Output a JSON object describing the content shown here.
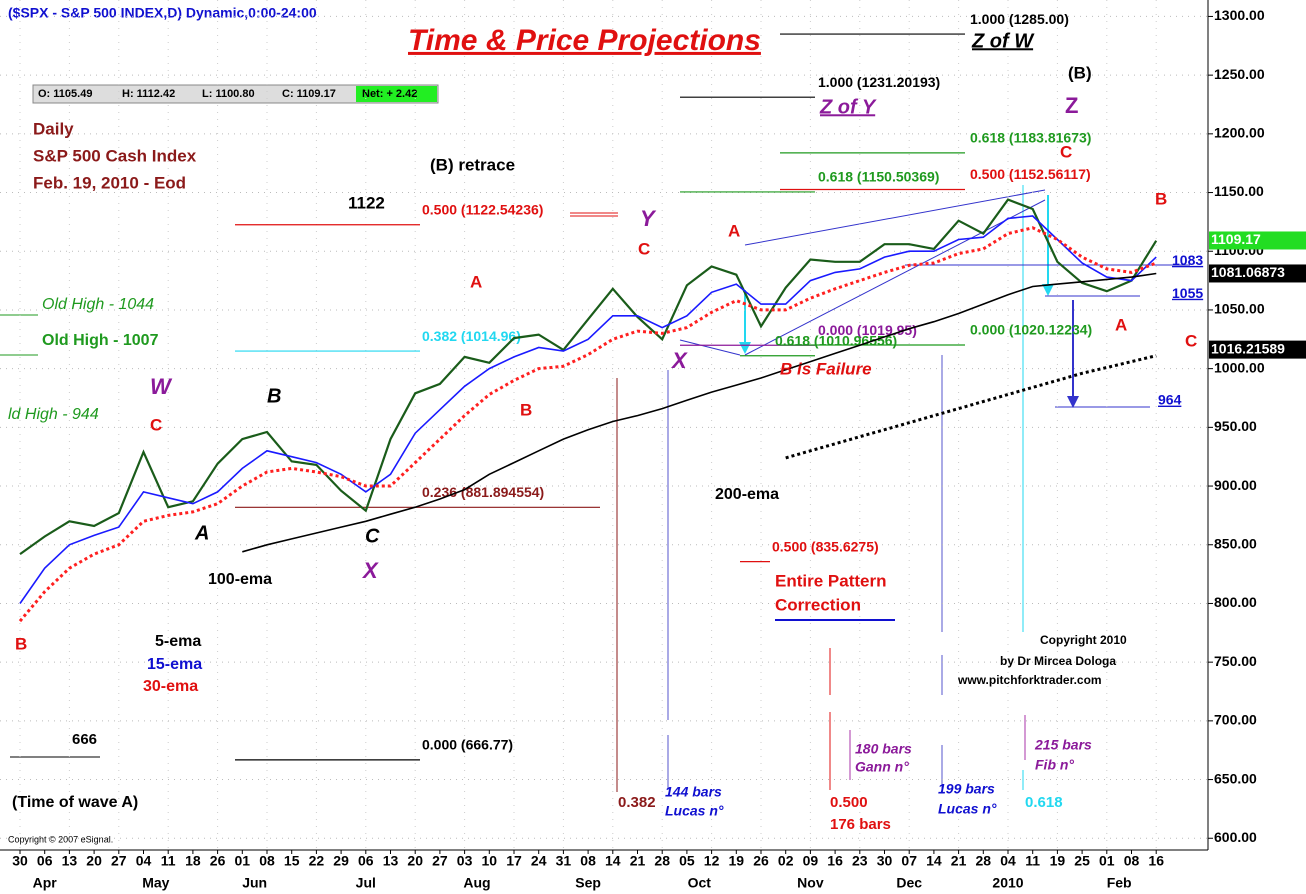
{
  "chart_data": {
    "type": "line",
    "header": "($SPX - S&P 500 INDEX,D) Dynamic,0:00-24:00",
    "ohlc": [
      "O: 1105.49",
      "H: 1112.42",
      "L: 1100.80",
      "C: 1109.17",
      "Net: + 2.42"
    ],
    "categories": [
      "30",
      "06",
      "13",
      "20",
      "27",
      "04",
      "11",
      "18",
      "26",
      "01",
      "08",
      "15",
      "22",
      "29",
      "06",
      "13",
      "20",
      "27",
      "03",
      "10",
      "17",
      "24",
      "31",
      "08",
      "14",
      "21",
      "28",
      "05",
      "12",
      "19",
      "26",
      "02",
      "09",
      "16",
      "23",
      "30",
      "07",
      "14",
      "21",
      "28",
      "04",
      "11",
      "19",
      "25",
      "01",
      "08",
      "16"
    ],
    "months": [
      "Apr",
      "May",
      "Jun",
      "Jul",
      "Aug",
      "Sep",
      "Oct",
      "Nov",
      "Dec",
      "2010",
      "Feb"
    ],
    "ylim": [
      590,
      1314
    ],
    "yticks": [
      {
        "value": 600,
        "label": "600.00"
      },
      {
        "value": 650,
        "label": "650.00"
      },
      {
        "value": 700,
        "label": "700.00"
      },
      {
        "value": 750,
        "label": "750.00"
      },
      {
        "value": 800,
        "label": "800.00"
      },
      {
        "value": 850,
        "label": "850.00"
      },
      {
        "value": 900,
        "label": "900.00"
      },
      {
        "value": 950,
        "label": "950.00"
      },
      {
        "value": 1000,
        "label": "1000.00"
      },
      {
        "value": 1050,
        "label": "1050.00"
      },
      {
        "value": 1100,
        "label": "1100.00"
      },
      {
        "value": 1150,
        "label": "1150.00"
      },
      {
        "value": 1200,
        "label": "1200.00"
      },
      {
        "value": 1250,
        "label": "1250.00"
      },
      {
        "value": 1300,
        "label": "1300.00"
      }
    ],
    "grid": true,
    "series": [
      {
        "name": "price",
        "color": "#1a5c1a",
        "dash": "",
        "values": [
          842,
          857,
          870,
          866,
          877,
          929,
          882,
          887,
          919,
          940,
          946,
          921,
          918,
          896,
          879,
          940,
          979,
          987,
          1010,
          1005,
          1026,
          1029,
          1016,
          1042,
          1068,
          1044,
          1025,
          1071,
          1087,
          1080,
          1036,
          1069,
          1093,
          1091,
          1091,
          1106,
          1106,
          1102,
          1126,
          1115,
          1144,
          1136,
          1091,
          1073,
          1066,
          1075,
          1109
        ]
      },
      {
        "name": "15-ema",
        "color": "#1a1aff",
        "dash": "",
        "values": [
          800,
          830,
          850,
          858,
          865,
          895,
          890,
          885,
          895,
          915,
          930,
          925,
          920,
          910,
          895,
          910,
          945,
          965,
          985,
          1000,
          1010,
          1018,
          1015,
          1025,
          1045,
          1045,
          1035,
          1045,
          1065,
          1072,
          1055,
          1055,
          1075,
          1082,
          1085,
          1095,
          1100,
          1100,
          1110,
          1112,
          1128,
          1130,
          1110,
          1090,
          1078,
          1075,
          1095
        ]
      },
      {
        "name": "30-ema",
        "color": "#ff2020",
        "dash": "3 3",
        "values": [
          785,
          810,
          830,
          842,
          850,
          870,
          875,
          878,
          885,
          900,
          912,
          915,
          912,
          908,
          900,
          900,
          920,
          940,
          960,
          978,
          990,
          1000,
          1002,
          1012,
          1025,
          1032,
          1030,
          1035,
          1048,
          1058,
          1050,
          1050,
          1060,
          1068,
          1075,
          1082,
          1088,
          1090,
          1098,
          1102,
          1115,
          1120,
          1110,
          1095,
          1085,
          1082,
          1090
        ]
      },
      {
        "name": "100-ema",
        "color": "#000000",
        "dash": "",
        "values": [
          null,
          null,
          null,
          null,
          null,
          null,
          null,
          null,
          null,
          844,
          850,
          855,
          860,
          865,
          870,
          876,
          882,
          889,
          897,
          910,
          920,
          930,
          940,
          948,
          955,
          960,
          966,
          973,
          980,
          986,
          992,
          999,
          1006,
          1013,
          1020,
          1027,
          1034,
          1040,
          1047,
          1055,
          1063,
          1070,
          1072,
          1074,
          1076,
          1078,
          1081
        ]
      },
      {
        "name": "200-ema",
        "color": "#000000",
        "dash": "3 3",
        "values": [
          null,
          null,
          null,
          null,
          null,
          null,
          null,
          null,
          null,
          null,
          null,
          null,
          null,
          null,
          null,
          null,
          null,
          null,
          null,
          null,
          null,
          null,
          null,
          null,
          null,
          null,
          null,
          null,
          null,
          null,
          null,
          924,
          930,
          936,
          942,
          948,
          954,
          960,
          966,
          972,
          978,
          984,
          990,
          996,
          1001,
          1006,
          1011
        ]
      }
    ],
    "levels": [
      {
        "label": "1.000 (1285.00)",
        "value": 1285,
        "color": "#000000"
      },
      {
        "label": "1.000 (1231.20193)",
        "value": 1231.20193,
        "color": "#000000"
      },
      {
        "label": "0.618 (1183.81673)",
        "value": 1183.81673,
        "color": "#1f9a1f"
      },
      {
        "label": "0.618 (1150.50369)",
        "value": 1150.50369,
        "color": "#1f9a1f"
      },
      {
        "label": "0.500 (1152.56117)",
        "value": 1152.56117,
        "color": "#e01010"
      },
      {
        "label": "0.500 (1122.54236)",
        "value": 1122.54236,
        "color": "#e01010"
      },
      {
        "label": "0.382 (1014.96)",
        "value": 1014.96,
        "color": "#22d8f0"
      },
      {
        "label": "0.236 (881.894554)",
        "value": 881.894554,
        "color": "#8b1a1a"
      },
      {
        "label": "0.000 (666.77)",
        "value": 666.77,
        "color": "#000000"
      },
      {
        "label": "0.500 (835.6275)",
        "value": 835.6275,
        "color": "#e01010"
      },
      {
        "label": "0.000 (1019.95)",
        "value": 1019.95,
        "color": "#8b1a9a"
      },
      {
        "label": "0.618 (1010.96556)",
        "value": 1010.96556,
        "color": "#1f9a1f"
      },
      {
        "label": "0.000 (1020.12234)",
        "value": 1020.12234,
        "color": "#1f9a1f"
      }
    ],
    "blue_levels": [
      1083,
      1055,
      964
    ],
    "price_labels": [
      {
        "value": 1109.17,
        "color": "#22dd22"
      },
      {
        "value": 1081.06873,
        "color": "#000000"
      },
      {
        "value": 1016.21589,
        "color": "#000000"
      }
    ],
    "annotations": [
      "Time & Price Projections",
      "Daily",
      "S&P 500 Cash Index",
      "Feb. 19, 2010 - Eod",
      "(B) retrace",
      "1122",
      "Old High - 1044",
      "Old High - 1007",
      "ld High - 944",
      "W",
      "C",
      "B",
      "A",
      "100-ema",
      "C",
      "X",
      "A",
      "B",
      "C",
      "Y",
      "X",
      "A",
      "B is Failure",
      "200-ema",
      "Entire Pattern",
      "Correction",
      "Z of Y",
      "Z of W",
      "(B)",
      "Z",
      "C",
      "B",
      "A",
      "C",
      "5-ema",
      "15-ema",
      "30-ema",
      "B",
      "(Time of wave A)",
      "Copyright © 2007 eSignal.",
      "Copyright 2010",
      "by Dr Mircea Dologa",
      "www.pitchforktrader.com",
      "0.382",
      "144 bars",
      "Lucas n°",
      "0.500",
      "176 bars",
      "180 bars",
      "Gann n°",
      "199 bars",
      "Lucas n°",
      "0.618",
      "215 bars",
      "Fib n°",
      "666"
    ]
  }
}
